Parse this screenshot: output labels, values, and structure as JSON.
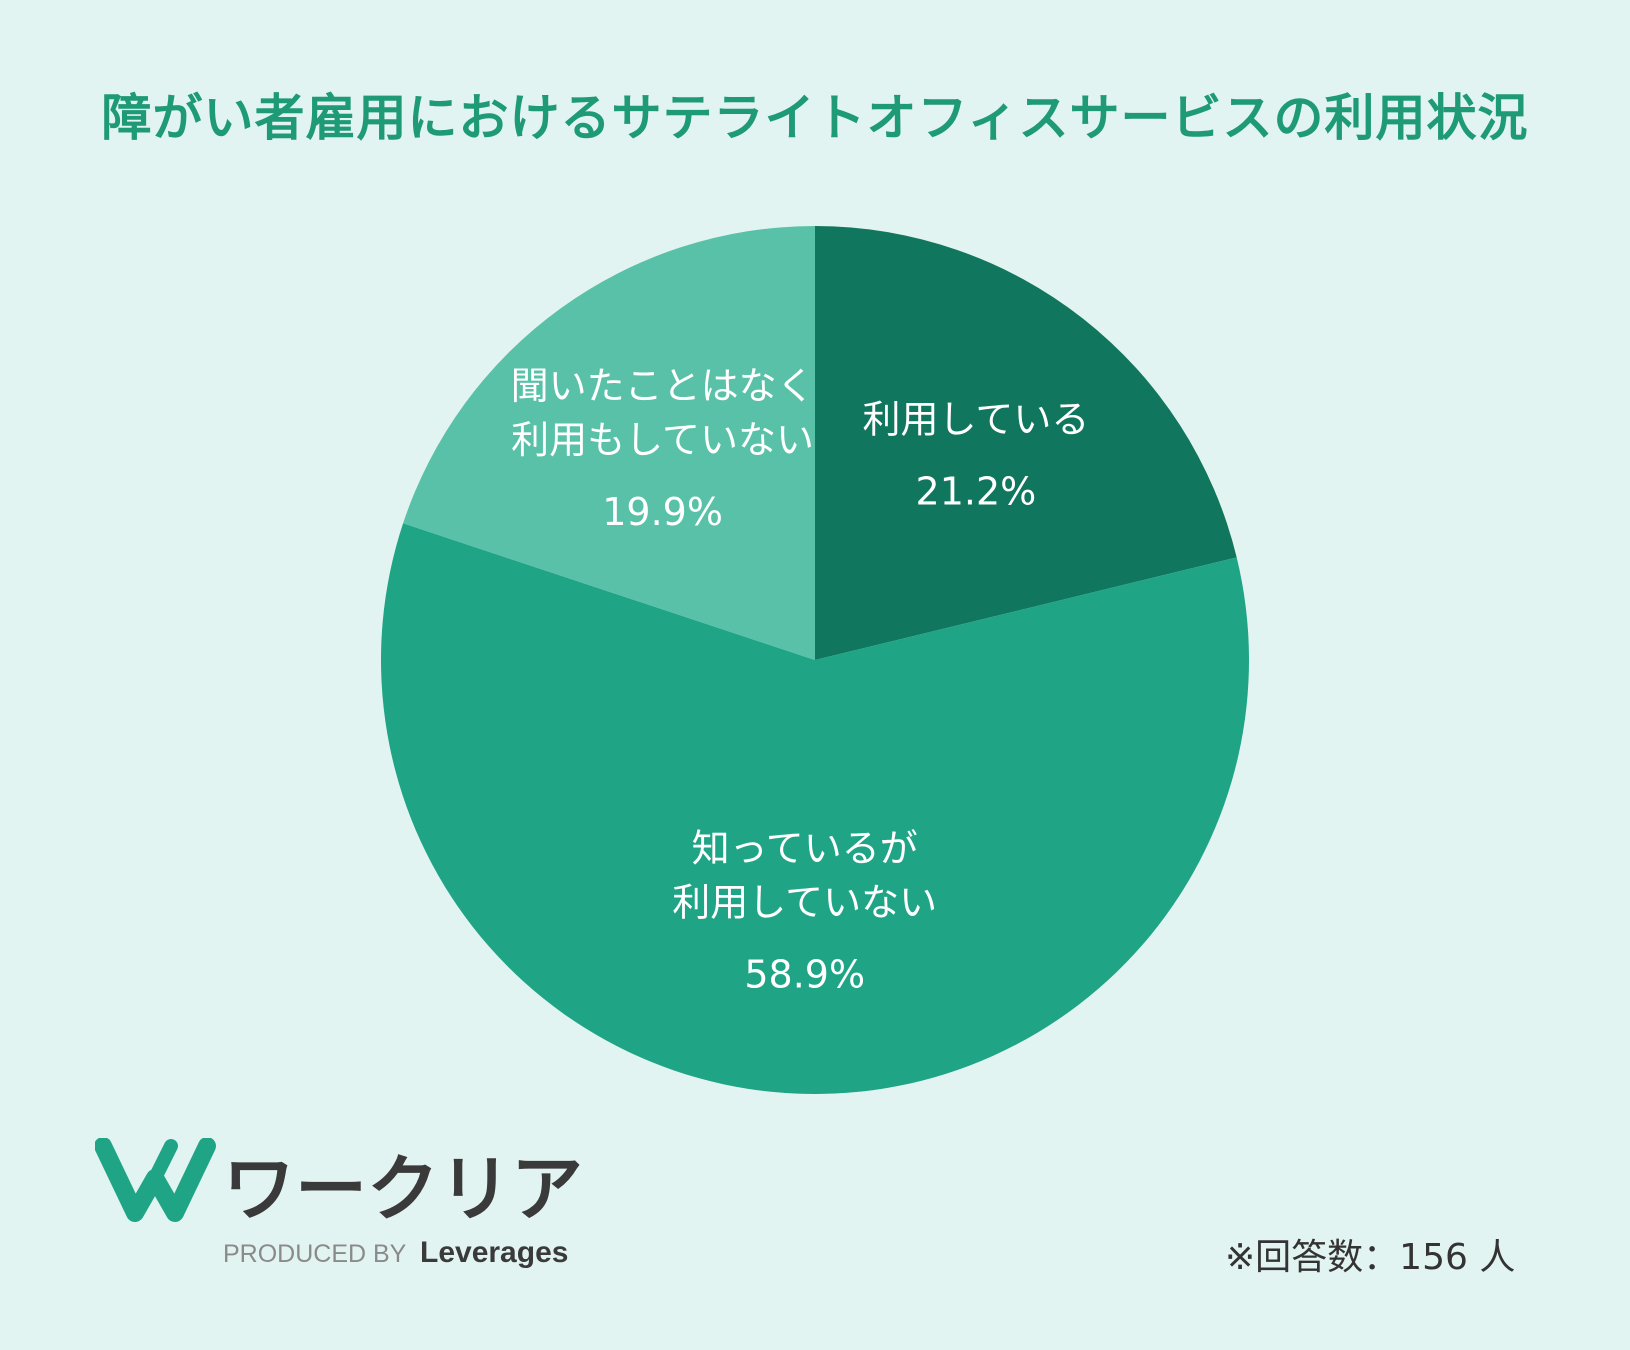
{
  "title": "障がい者雇用におけるサテライトオフィスサービスの利用状況",
  "chart_data": {
    "type": "pie",
    "title": "障がい者雇用におけるサテライトオフィスサービスの利用状況",
    "start": "12 o'clock, clockwise",
    "slices": [
      {
        "label_lines": [
          "利用している"
        ],
        "value": 21.2,
        "value_text": "21.2%",
        "color": "#10765d"
      },
      {
        "label_lines": [
          "知っているが",
          "利用していない"
        ],
        "value": 58.9,
        "value_text": "58.9%",
        "color": "#1fa586"
      },
      {
        "label_lines": [
          "聞いたことはなく",
          "利用もしていない"
        ],
        "value": 19.9,
        "value_text": "19.9%",
        "color": "#58c1a8"
      }
    ],
    "label_color": "#ffffff"
  },
  "logo": {
    "brand_text": "ワークリア",
    "produced_by": "PRODUCED BY",
    "company": "Leverages",
    "mark_color": "#1fa586",
    "text_color": "#3a3a3a"
  },
  "note": "※回答数：156 人"
}
